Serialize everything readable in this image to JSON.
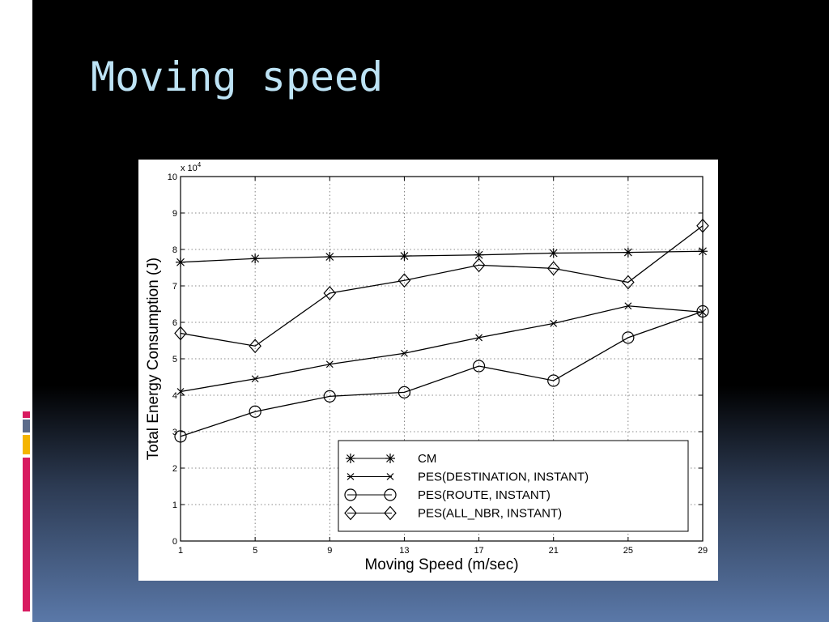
{
  "slide": {
    "title": "Moving speed",
    "accent_colors": [
      "#d81b60",
      "#5c6b8a",
      "#f4b400",
      "#d81b60"
    ]
  },
  "chart_data": {
    "type": "line",
    "xlabel": "Moving Speed (m/sec)",
    "ylabel": "Total Energy Consumption (J)",
    "y_multiplier": "x 10",
    "y_multiplier_exp": "4",
    "x": [
      1,
      5,
      9,
      13,
      17,
      21,
      25,
      29
    ],
    "x_ticks": [
      "1",
      "5",
      "9",
      "13",
      "17",
      "21",
      "25",
      "29"
    ],
    "ylim": [
      0,
      10
    ],
    "y_ticks": [
      "0",
      "1",
      "2",
      "3",
      "4",
      "5",
      "6",
      "7",
      "8",
      "9",
      "10"
    ],
    "grid": true,
    "legend_position": "bottom-right",
    "series": [
      {
        "name": "CM",
        "marker": "asterisk",
        "values": [
          7.65,
          7.75,
          7.8,
          7.82,
          7.85,
          7.9,
          7.92,
          7.95
        ]
      },
      {
        "name": "PES(DESTINATION, INSTANT)",
        "marker": "x",
        "values": [
          4.1,
          4.45,
          4.85,
          5.15,
          5.58,
          5.97,
          6.45,
          6.28
        ]
      },
      {
        "name": "PES(ROUTE, INSTANT)",
        "marker": "circle",
        "values": [
          2.87,
          3.55,
          3.97,
          4.08,
          4.8,
          4.4,
          5.58,
          6.3
        ]
      },
      {
        "name": "PES(ALL_NBR, INSTANT)",
        "marker": "diamond",
        "values": [
          5.7,
          5.35,
          6.8,
          7.15,
          7.57,
          7.48,
          7.1,
          8.65
        ]
      }
    ]
  }
}
